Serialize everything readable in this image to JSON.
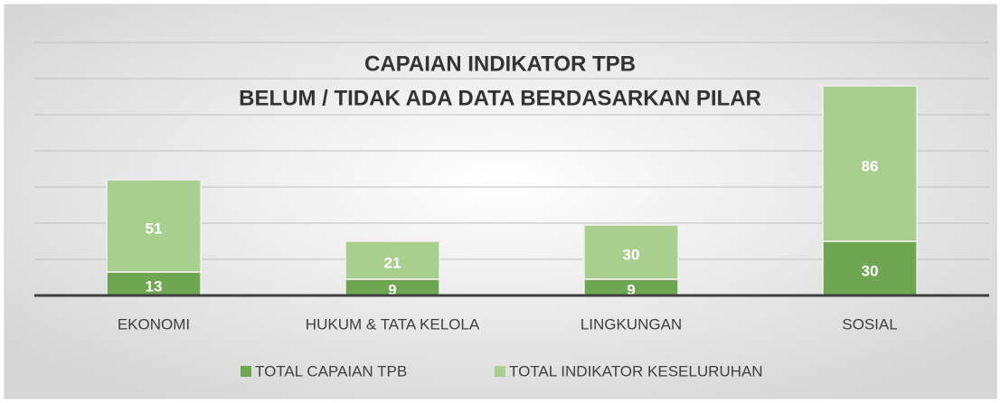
{
  "chart_data": {
    "type": "bar",
    "stacked": true,
    "title": "CAPAIAN INDIKATOR  TPB",
    "subtitle": "BELUM / TIDAK ADA DATA  BERDASARKAN PILAR",
    "categories": [
      "EKONOMI",
      "HUKUM & TATA KELOLA",
      "LINGKUNGAN",
      "SOSIAL"
    ],
    "series": [
      {
        "name": "TOTAL CAPAIAN TPB",
        "color": "#6fa652",
        "values": [
          13,
          9,
          9,
          30
        ]
      },
      {
        "name": "TOTAL INDIKATOR KESELURUHAN",
        "color": "#a9cf8f",
        "values": [
          51,
          21,
          30,
          86
        ]
      }
    ],
    "ylim": [
      0,
      140
    ],
    "yticks": [
      0,
      20,
      40,
      60,
      80,
      100,
      120,
      140
    ],
    "grid": true,
    "legend": "bottom"
  }
}
